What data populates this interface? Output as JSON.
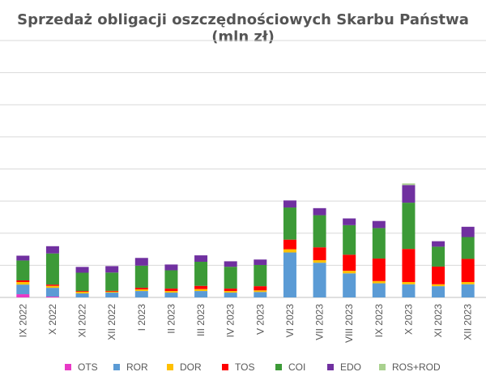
{
  "chart_data": {
    "type": "bar",
    "stacked": true,
    "title": "Sprzedaż obligacji oszczędnościowych Skarbu Państwa (mln zł)",
    "xlabel": "",
    "ylabel": "",
    "ylim": [
      0,
      8000
    ],
    "grid": true,
    "legend_position": "bottom",
    "categories": [
      "IX 2022",
      "X 2022",
      "XI 2022",
      "XII 2022",
      "I 2023",
      "II 2023",
      "III 2023",
      "IV 2023",
      "V 2023",
      "VI 2023",
      "VII 2023",
      "VIII 2023",
      "IX 2023",
      "X 2023",
      "XI 2023",
      "XII 2023"
    ],
    "series": [
      {
        "name": "OTS",
        "color": "#e839c6",
        "values": [
          100,
          25,
          0,
          0,
          0,
          0,
          0,
          0,
          0,
          0,
          0,
          0,
          0,
          0,
          0,
          0
        ]
      },
      {
        "name": "ROR",
        "color": "#5b9bd5",
        "values": [
          300,
          275,
          125,
          150,
          200,
          150,
          200,
          150,
          170,
          1400,
          1080,
          750,
          440,
          410,
          350,
          410
        ]
      },
      {
        "name": "DOR",
        "color": "#ffc000",
        "values": [
          80,
          60,
          50,
          30,
          50,
          50,
          60,
          50,
          50,
          100,
          80,
          80,
          70,
          70,
          60,
          70
        ]
      },
      {
        "name": "TOS",
        "color": "#ff0000",
        "values": [
          50,
          40,
          25,
          25,
          50,
          75,
          100,
          75,
          130,
          300,
          400,
          500,
          700,
          1030,
          550,
          720
        ]
      },
      {
        "name": "COI",
        "color": "#3c9a37",
        "values": [
          620,
          970,
          570,
          570,
          690,
          570,
          750,
          680,
          660,
          1000,
          1000,
          920,
          950,
          1440,
          620,
          680
        ]
      },
      {
        "name": "EDO",
        "color": "#7030a0",
        "values": [
          150,
          225,
          180,
          200,
          240,
          180,
          200,
          170,
          170,
          220,
          220,
          210,
          220,
          550,
          170,
          320
        ]
      },
      {
        "name": "ROS+ROD",
        "color": "#a9d18e",
        "values": [
          0,
          0,
          0,
          0,
          0,
          0,
          0,
          0,
          0,
          0,
          0,
          0,
          0,
          50,
          0,
          0
        ]
      }
    ]
  }
}
